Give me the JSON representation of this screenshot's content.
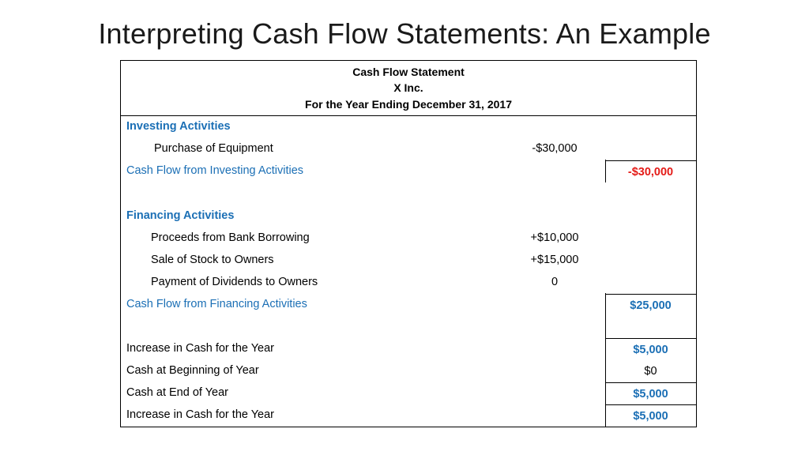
{
  "title": "Interpreting Cash Flow Statements: An Example",
  "statement": {
    "header": {
      "line1": "Cash Flow Statement",
      "line2": "X Inc.",
      "line3": "For the Year Ending December 31, 2017"
    },
    "investing": {
      "heading": "Investing Activities",
      "items": [
        {
          "label": "Purchase of Equipment",
          "amount": "-$30,000"
        }
      ],
      "total_label": "Cash Flow from Investing Activities",
      "total_value": "-$30,000"
    },
    "financing": {
      "heading": "Financing Activities",
      "items": [
        {
          "label": "Proceeds from Bank Borrowing",
          "amount": "+$10,000"
        },
        {
          "label": "Sale of Stock to Owners",
          "amount": "+$15,000"
        },
        {
          "label": "Payment of Dividends to Owners",
          "amount": "0"
        }
      ],
      "total_label": "Cash Flow from Financing Activities",
      "total_value": "$25,000"
    },
    "summary": [
      {
        "label": "Increase in Cash for the Year",
        "value": "$5,000"
      },
      {
        "label": "Cash at Beginning of Year",
        "value": "$0"
      },
      {
        "label": "Cash at End of Year",
        "value": "$5,000"
      },
      {
        "label": "Increase in Cash for the Year",
        "value": "$5,000"
      }
    ]
  },
  "colors": {
    "accent_blue": "#1b6fb5",
    "negative_red": "#e41b17"
  }
}
